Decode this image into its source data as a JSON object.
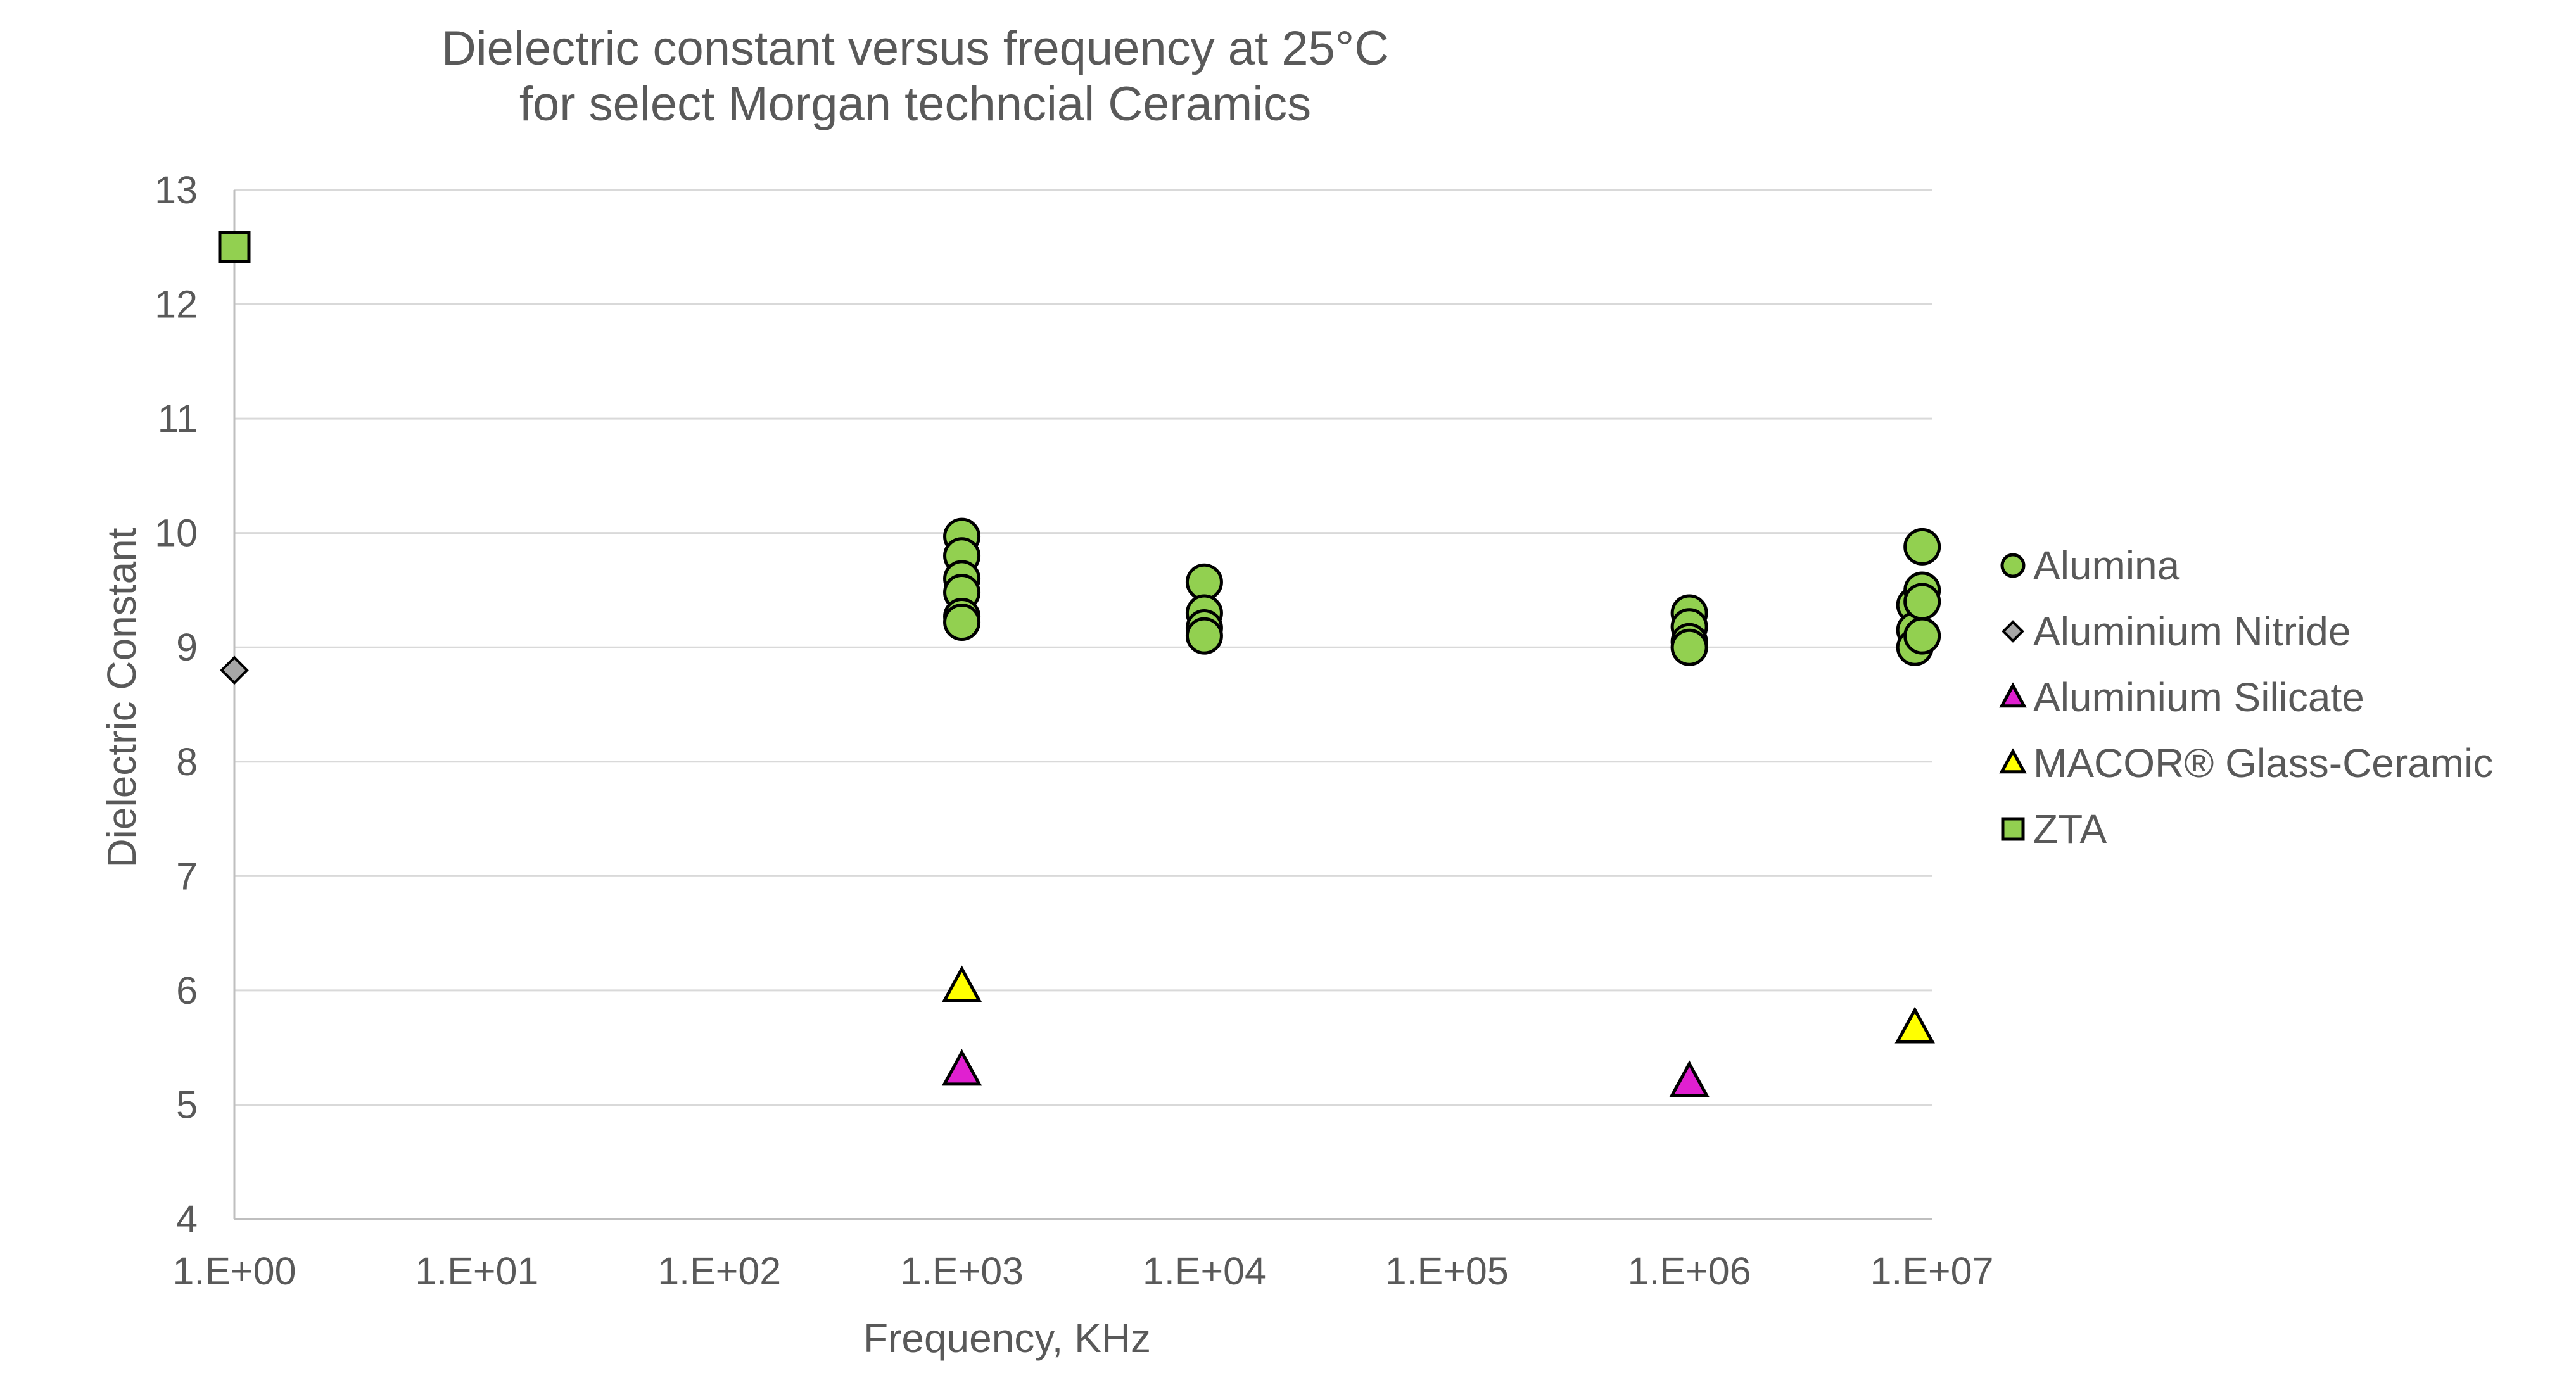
{
  "chart_data": {
    "type": "scatter",
    "title": [
      "Dielectric constant versus frequency at 25°C",
      "for select Morgan techncial Ceramics"
    ],
    "xlabel": "Frequency, KHz",
    "ylabel": "Dielectric Constant",
    "xscale": "log",
    "xlim_exponent": [
      0,
      7
    ],
    "ylim": [
      4,
      13
    ],
    "xticks": [
      "1.E+00",
      "1.E+01",
      "1.E+02",
      "1.E+03",
      "1.E+04",
      "1.E+05",
      "1.E+06",
      "1.E+07"
    ],
    "yticks": [
      "4",
      "5",
      "6",
      "7",
      "8",
      "9",
      "10",
      "11",
      "12",
      "13"
    ],
    "grid": "horizontal",
    "legend_position": "right",
    "series": [
      {
        "name": "Alumina",
        "marker": "circle",
        "color": "#92D050",
        "points": [
          {
            "x_exp": 3.0,
            "y": 9.97
          },
          {
            "x_exp": 3.0,
            "y": 9.8
          },
          {
            "x_exp": 3.0,
            "y": 9.6
          },
          {
            "x_exp": 3.0,
            "y": 9.48
          },
          {
            "x_exp": 3.0,
            "y": 9.27
          },
          {
            "x_exp": 3.0,
            "y": 9.22
          },
          {
            "x_exp": 4.0,
            "y": 9.57
          },
          {
            "x_exp": 4.0,
            "y": 9.3
          },
          {
            "x_exp": 4.0,
            "y": 9.17
          },
          {
            "x_exp": 4.0,
            "y": 9.1
          },
          {
            "x_exp": 6.0,
            "y": 9.3
          },
          {
            "x_exp": 6.0,
            "y": 9.18
          },
          {
            "x_exp": 6.0,
            "y": 9.05
          },
          {
            "x_exp": 6.0,
            "y": 9.0
          },
          {
            "x_exp": 6.93,
            "y": 9.37
          },
          {
            "x_exp": 6.93,
            "y": 9.15
          },
          {
            "x_exp": 6.93,
            "y": 9.0
          },
          {
            "x_exp": 6.96,
            "y": 9.88
          },
          {
            "x_exp": 6.96,
            "y": 9.5
          },
          {
            "x_exp": 6.96,
            "y": 9.4
          },
          {
            "x_exp": 6.96,
            "y": 9.1
          }
        ]
      },
      {
        "name": "Aluminium Nitride",
        "marker": "diamond",
        "color": "#A6A6A6",
        "points": [
          {
            "x_exp": 0.0,
            "y": 8.8
          }
        ]
      },
      {
        "name": "Aluminium Silicate",
        "marker": "triangle",
        "color": "#E020D0",
        "points": [
          {
            "x_exp": 3.0,
            "y": 5.3
          },
          {
            "x_exp": 6.0,
            "y": 5.2
          }
        ]
      },
      {
        "name": "MACOR® Glass-Ceramic",
        "marker": "triangle",
        "color": "#FFFF00",
        "points": [
          {
            "x_exp": 3.0,
            "y": 6.03
          },
          {
            "x_exp": 6.93,
            "y": 5.67
          }
        ]
      },
      {
        "name": "ZTA",
        "marker": "square",
        "color": "#92D050",
        "points": [
          {
            "x_exp": 0.0,
            "y": 12.5
          }
        ]
      }
    ]
  }
}
